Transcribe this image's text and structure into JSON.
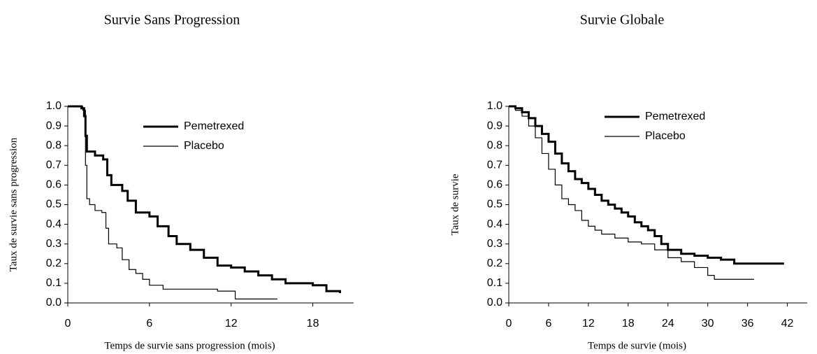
{
  "chart_data": [
    {
      "type": "step",
      "title": "Survie Sans Progression",
      "xlabel": "Temps de survie sans progression (mois)",
      "ylabel": "Taux de survie sans progression",
      "xlim": [
        0,
        21
      ],
      "xticks": [
        0,
        6,
        12,
        18
      ],
      "ylim": [
        0,
        1
      ],
      "yticks": [
        {
          "value": 0,
          "label": "0.0"
        },
        0.1,
        0.2,
        0.3,
        0.4,
        0.5,
        0.6,
        0.7,
        0.8,
        0.9,
        {
          "value": 1,
          "label": "1.0"
        }
      ],
      "series": [
        {
          "name": "Pemetrexed",
          "color": "#000000",
          "width": 3,
          "x": [
            0,
            1,
            1.2,
            1.3,
            1.4,
            2,
            2.6,
            2.9,
            3.2,
            4,
            4.4,
            5,
            6,
            6.6,
            7.4,
            8,
            9,
            10,
            11,
            12,
            13,
            14,
            15,
            16,
            18,
            19,
            20
          ],
          "values": [
            1,
            0.99,
            0.95,
            0.85,
            0.77,
            0.75,
            0.73,
            0.65,
            0.6,
            0.57,
            0.52,
            0.46,
            0.44,
            0.39,
            0.34,
            0.3,
            0.27,
            0.23,
            0.19,
            0.18,
            0.16,
            0.14,
            0.12,
            0.1,
            0.09,
            0.06,
            0.05
          ]
        },
        {
          "name": "Placebo",
          "color": "#000000",
          "width": 1.2,
          "x": [
            0,
            1.1,
            1.3,
            1.4,
            1.6,
            2,
            2.5,
            2.8,
            3,
            3.6,
            4,
            4.5,
            5,
            5.5,
            6,
            7,
            11,
            12.3,
            15.4
          ],
          "values": [
            1,
            0.98,
            0.7,
            0.53,
            0.5,
            0.47,
            0.46,
            0.38,
            0.3,
            0.28,
            0.22,
            0.17,
            0.15,
            0.12,
            0.09,
            0.07,
            0.06,
            0.02,
            0.02
          ]
        }
      ]
    },
    {
      "type": "step",
      "title": "Survie Globale",
      "xlabel": "Temps de survie (mois)",
      "ylabel": "Taux de survie",
      "xlim": [
        0,
        45
      ],
      "xticks": [
        0,
        6,
        12,
        18,
        24,
        30,
        36,
        42
      ],
      "ylim": [
        0,
        1
      ],
      "yticks": [
        {
          "value": 0,
          "label": "0.0"
        },
        0.1,
        0.2,
        0.3,
        0.4,
        0.5,
        0.6,
        0.7,
        0.8,
        0.9,
        {
          "value": 1,
          "label": "1.0"
        }
      ],
      "series": [
        {
          "name": "Pemetrexed",
          "color": "#000000",
          "width": 3,
          "x": [
            0,
            1,
            2,
            3,
            4,
            5,
            6,
            7,
            8,
            9,
            10,
            11,
            12,
            13,
            14,
            15,
            16,
            17,
            18,
            19,
            20,
            21,
            22,
            23,
            24,
            26,
            28,
            30,
            32,
            34,
            41.5
          ],
          "values": [
            1,
            0.99,
            0.97,
            0.94,
            0.9,
            0.86,
            0.82,
            0.76,
            0.71,
            0.67,
            0.63,
            0.61,
            0.58,
            0.55,
            0.52,
            0.5,
            0.48,
            0.46,
            0.44,
            0.41,
            0.39,
            0.37,
            0.34,
            0.3,
            0.27,
            0.25,
            0.24,
            0.23,
            0.22,
            0.2,
            0.2
          ]
        },
        {
          "name": "Placebo",
          "color": "#000000",
          "width": 1.2,
          "x": [
            0,
            1,
            2,
            3,
            4,
            5,
            6,
            7,
            8,
            9,
            10,
            11,
            12,
            13,
            14,
            16,
            18,
            20,
            22,
            24,
            26,
            28,
            30,
            31,
            37
          ],
          "values": [
            1,
            0.98,
            0.95,
            0.9,
            0.84,
            0.76,
            0.68,
            0.6,
            0.53,
            0.5,
            0.47,
            0.42,
            0.39,
            0.37,
            0.35,
            0.33,
            0.31,
            0.3,
            0.27,
            0.23,
            0.21,
            0.18,
            0.14,
            0.12,
            0.12
          ]
        }
      ]
    }
  ]
}
